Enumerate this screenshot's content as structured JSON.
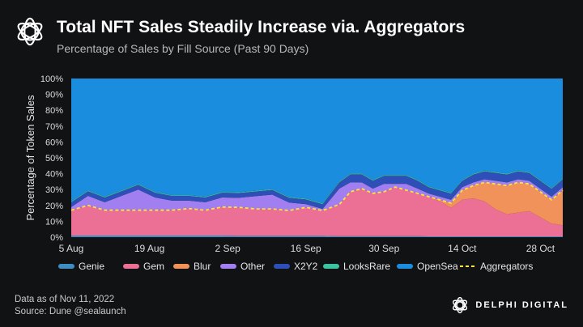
{
  "header": {
    "title": "Total NFT Sales Steadily Increase via. Aggregators",
    "subtitle": "Percentage of Sales by Fill Source (Past 90 Days)"
  },
  "footer": {
    "date_note": "Data as of Nov 11, 2022",
    "source_note": "Source: Dune @sealaunch",
    "brand": "DELPHI DIGITAL"
  },
  "chart_data": {
    "type": "area",
    "stacked": true,
    "title": "Total NFT Sales Steadily Increase via. Aggregators",
    "subtitle": "Percentage of Sales by Fill Source (Past 90 Days)",
    "xlabel": "",
    "ylabel": "Percentage of Token Sales",
    "ylim": [
      0,
      100
    ],
    "yticks": [
      0,
      10,
      20,
      30,
      40,
      50,
      60,
      70,
      80,
      90,
      100
    ],
    "ytick_labels": [
      "0%",
      "10%",
      "20%",
      "30%",
      "40%",
      "50%",
      "60%",
      "70%",
      "80%",
      "90%",
      "100%"
    ],
    "x_range_days": [
      0,
      88
    ],
    "x_ticks": [
      {
        "day": 0,
        "label": "5 Aug"
      },
      {
        "day": 14,
        "label": "19 Aug"
      },
      {
        "day": 28,
        "label": "2 Sep"
      },
      {
        "day": 42,
        "label": "16 Sep"
      },
      {
        "day": 56,
        "label": "30 Sep"
      },
      {
        "day": 70,
        "label": "14 Oct"
      },
      {
        "day": 84,
        "label": "28 Oct"
      }
    ],
    "days": [
      0,
      3,
      6,
      9,
      12,
      15,
      18,
      21,
      24,
      27,
      30,
      33,
      36,
      39,
      42,
      45,
      48,
      50,
      52,
      54,
      56,
      58,
      60,
      62,
      64,
      66,
      68,
      70,
      72,
      74,
      76,
      78,
      80,
      82,
      84,
      86,
      88
    ],
    "series": [
      {
        "name": "Genie",
        "color": "#3e8ec4",
        "values": [
          1.0,
          1.0,
          1.0,
          1.0,
          1.0,
          1.0,
          1.0,
          1.0,
          1.0,
          1.0,
          0.8,
          0.8,
          0.8,
          0.8,
          0.8,
          0.8,
          0.6,
          0.6,
          0.6,
          0.6,
          0.6,
          0.6,
          0.6,
          0.6,
          0.5,
          0.5,
          0.5,
          0.5,
          0.5,
          0.5,
          0.5,
          0.5,
          0.5,
          0.5,
          0.5,
          0.5,
          0.5
        ]
      },
      {
        "name": "Gem",
        "color": "#ec6f96",
        "values": [
          16,
          19,
          16,
          16,
          16,
          16,
          16,
          17,
          16,
          18,
          18,
          17,
          17,
          16,
          18,
          16,
          20,
          28,
          30,
          27,
          28,
          31,
          29,
          27,
          25,
          22,
          18,
          23,
          24,
          22,
          17,
          14,
          15,
          16,
          12,
          8,
          7
        ]
      },
      {
        "name": "Blur",
        "color": "#f0925a",
        "values": [
          0,
          0,
          0,
          0,
          0,
          0,
          0,
          0,
          0,
          0,
          0,
          0,
          0,
          0,
          0,
          0,
          0,
          0,
          0,
          0,
          0,
          0,
          0,
          0,
          0,
          1,
          3,
          6,
          8,
          12,
          16,
          18,
          19,
          17,
          16,
          15,
          22
        ]
      },
      {
        "name": "Other",
        "color": "#a27ff0",
        "values": [
          2,
          6,
          5,
          9,
          13,
          8,
          6,
          5,
          5,
          6,
          6,
          8,
          9,
          5,
          2,
          1,
          10,
          6,
          4,
          3,
          5,
          2,
          4,
          3,
          2,
          2,
          2,
          2,
          2,
          2,
          2,
          2,
          2,
          2,
          2,
          2,
          2
        ]
      },
      {
        "name": "X2Y2",
        "color": "#2f4fb8",
        "values": [
          3,
          3,
          3,
          3,
          3,
          3,
          3,
          3,
          3,
          3,
          3,
          3,
          3,
          3,
          3,
          3,
          4,
          5,
          5,
          5,
          5,
          5,
          5,
          5,
          4,
          4,
          4,
          4,
          5,
          5,
          5,
          5,
          5,
          5,
          5,
          5,
          5
        ]
      },
      {
        "name": "LooksRare",
        "color": "#3bc4a0",
        "values": [
          0.5,
          0.5,
          0.5,
          0.5,
          0.5,
          0.5,
          0.5,
          0.5,
          0.5,
          0.5,
          0.5,
          0.5,
          0.5,
          0.5,
          0.5,
          0.5,
          0.5,
          0.5,
          0.5,
          0.5,
          0.5,
          0.5,
          0.5,
          0.5,
          0.5,
          0.5,
          0.5,
          0.5,
          0.5,
          0.5,
          0.5,
          0.5,
          0.5,
          0.5,
          0.5,
          0.5,
          0.5
        ]
      },
      {
        "name": "OpenSea",
        "color": "#1b8ddf",
        "values": "remainder to 100%"
      }
    ],
    "aggregators": {
      "name": "Aggregators",
      "color": "#ffe23a",
      "style": "dashed",
      "description": "Sum of Genie, Gem and Blur"
    },
    "legend": [
      "Genie",
      "Gem",
      "Blur",
      "Other",
      "X2Y2",
      "LooksRare",
      "OpenSea",
      "Aggregators"
    ],
    "legend_position": "bottom"
  }
}
